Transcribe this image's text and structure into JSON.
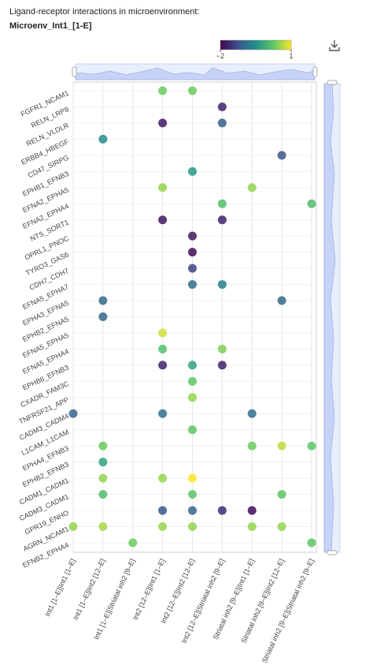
{
  "chart_data": {
    "type": "dotplot",
    "title": "Ligand-receptor interactions in microenvironment:",
    "subtitle": "Microenv_Int1_[1-E]",
    "x": [
      "Int1 [1–E]|Int1 [1–E]",
      "Int1 [1–E]|Int2 [12–E]",
      "Int1 [1–E]|Striatal inh2 [9–E]",
      "Int2 [12–E]|Int1 [1–E]",
      "Int2 [12–E]|Int2 [12–E]",
      "Int2 [12–E]|Striatal inh2 [9–E]",
      "Striatal inh2 [9–E]|Int1 [1–E]",
      "Striatal inh2 [9–E]|Int2 [12–E]",
      "Striatal inh2 [9–E]|Striatal inh2 [9–E]"
    ],
    "y": [
      "FGFR1_NCAM1",
      "RELN_LRP8",
      "RELN_VLDLR",
      "ERBB4_HBEGF",
      "CD47_SIRPG",
      "EPHB1_EFNB3",
      "EFNA2_EPHA5",
      "EFNA2_EPHA4",
      "NTS_SORT1",
      "OPRL1_PNOC",
      "TYRO3_GAS6",
      "CDH7_CDH7",
      "EFNA5_EPHA7",
      "EPHA3_EFNA5",
      "EPHB2_EFNA5",
      "EFNA5_EPHA5",
      "EFNA5_EPHA4",
      "EPHB6_EFNB3",
      "CXADR_FAM3C",
      "TNFRSF21_APP",
      "CADM3_CADM4",
      "L1CAM_L1CAM",
      "EPHA4_EFNB3",
      "EPHB2_EFNB3",
      "CADM1_CADM1",
      "CADM3_CADM1",
      "GPR19_ENHO",
      "AGRN_NCAM1",
      "EFNB2_EPHA4"
    ],
    "values": [
      [
        null,
        null,
        null,
        0.3,
        0.3,
        null,
        null,
        null,
        null
      ],
      [
        null,
        null,
        null,
        null,
        null,
        -1.7,
        null,
        null,
        null
      ],
      [
        null,
        null,
        null,
        -1.8,
        null,
        -1.1,
        null,
        null,
        null
      ],
      [
        null,
        -0.6,
        null,
        null,
        null,
        null,
        null,
        null,
        null
      ],
      [
        null,
        null,
        null,
        null,
        null,
        null,
        null,
        -1.2,
        null
      ],
      [
        null,
        null,
        null,
        null,
        -0.4,
        null,
        null,
        null,
        null
      ],
      [
        null,
        null,
        null,
        0.5,
        null,
        null,
        0.5,
        null,
        null
      ],
      [
        null,
        null,
        null,
        null,
        null,
        0.1,
        null,
        null,
        0.1
      ],
      [
        null,
        null,
        null,
        -1.8,
        null,
        -1.7,
        null,
        null,
        null
      ],
      [
        null,
        null,
        null,
        null,
        -1.8,
        null,
        null,
        null,
        null
      ],
      [
        null,
        null,
        null,
        null,
        -1.9,
        null,
        null,
        null,
        null
      ],
      [
        null,
        null,
        null,
        null,
        -1.4,
        null,
        null,
        null,
        null
      ],
      [
        null,
        null,
        null,
        null,
        -0.9,
        -0.7,
        null,
        null,
        null
      ],
      [
        null,
        -1.0,
        null,
        null,
        null,
        null,
        null,
        -1.0,
        null
      ],
      [
        null,
        -1.0,
        null,
        null,
        null,
        null,
        null,
        null,
        null
      ],
      [
        null,
        null,
        null,
        0.8,
        null,
        null,
        null,
        null,
        null
      ],
      [
        null,
        null,
        null,
        0.1,
        null,
        0.4,
        null,
        null,
        null
      ],
      [
        null,
        null,
        null,
        -1.7,
        -0.3,
        -1.7,
        null,
        null,
        null
      ],
      [
        null,
        null,
        null,
        null,
        0.2,
        null,
        null,
        null,
        null
      ],
      [
        null,
        null,
        null,
        null,
        0.5,
        null,
        null,
        null,
        null
      ],
      [
        -1.0,
        null,
        null,
        -0.9,
        null,
        null,
        -0.9,
        null,
        null
      ],
      [
        null,
        null,
        null,
        null,
        0.2,
        null,
        null,
        null,
        null
      ],
      [
        null,
        0.3,
        null,
        null,
        null,
        null,
        0.3,
        0.7,
        0.2
      ],
      [
        null,
        -0.3,
        null,
        null,
        null,
        null,
        null,
        null,
        null
      ],
      [
        null,
        0.5,
        null,
        0.5,
        1.0,
        null,
        null,
        null,
        null
      ],
      [
        null,
        0.1,
        null,
        null,
        0.2,
        null,
        null,
        0.2,
        null
      ],
      [
        null,
        null,
        null,
        -1.2,
        -1.0,
        -1.6,
        -1.9,
        null,
        null
      ],
      [
        0.5,
        0.6,
        null,
        0.5,
        0.5,
        null,
        0.5,
        0.5,
        null
      ],
      [
        null,
        null,
        0.3,
        null,
        null,
        null,
        null,
        null,
        0.2
      ]
    ],
    "colormap": "viridis",
    "clim": [
      -2,
      1
    ],
    "cticks": [
      {
        "value": -2,
        "label": "−2"
      },
      1
    ],
    "grid": true
  }
}
